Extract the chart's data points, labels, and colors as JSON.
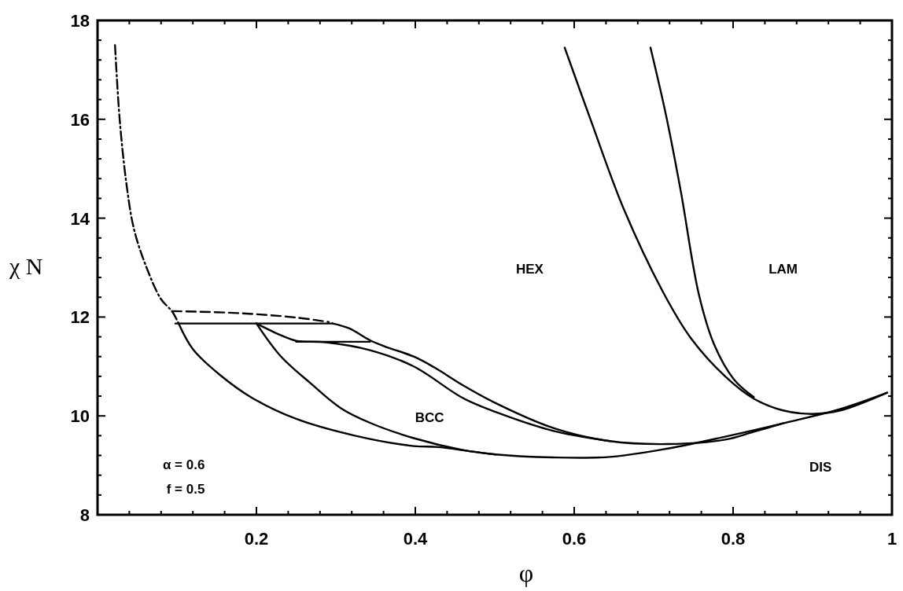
{
  "chart_data": {
    "type": "line",
    "xlabel": "φ",
    "ylabel": "χ N",
    "xlim": [
      0,
      1
    ],
    "ylim": [
      8,
      18
    ],
    "xticks": [
      {
        "value": 0.04,
        "label": null
      },
      {
        "value": 0.08,
        "label": null
      },
      {
        "value": 0.12,
        "label": null
      },
      {
        "value": 0.16,
        "label": null
      },
      0.2,
      {
        "value": 0.24,
        "label": null
      },
      {
        "value": 0.28,
        "label": null
      },
      {
        "value": 0.32,
        "label": null
      },
      {
        "value": 0.36,
        "label": null
      },
      0.4,
      {
        "value": 0.44,
        "label": null
      },
      {
        "value": 0.48,
        "label": null
      },
      {
        "value": 0.52,
        "label": null
      },
      {
        "value": 0.56,
        "label": null
      },
      0.6,
      {
        "value": 0.64,
        "label": null
      },
      {
        "value": 0.68,
        "label": null
      },
      {
        "value": 0.72,
        "label": null
      },
      {
        "value": 0.76,
        "label": null
      },
      0.8,
      {
        "value": 0.84,
        "label": null
      },
      {
        "value": 0.88,
        "label": null
      },
      {
        "value": 0.92,
        "label": null
      },
      {
        "value": 0.96,
        "label": null
      },
      1
    ],
    "yticks": [
      8,
      {
        "value": 8.4,
        "label": null
      },
      {
        "value": 8.8,
        "label": null
      },
      {
        "value": 9.2,
        "label": null
      },
      {
        "value": 9.6,
        "label": null
      },
      10,
      {
        "value": 10.4,
        "label": null
      },
      {
        "value": 10.8,
        "label": null
      },
      {
        "value": 11.2,
        "label": null
      },
      {
        "value": 11.6,
        "label": null
      },
      12,
      {
        "value": 12.4,
        "label": null
      },
      {
        "value": 12.8,
        "label": null
      },
      {
        "value": 13.2,
        "label": null
      },
      {
        "value": 13.6,
        "label": null
      },
      14,
      {
        "value": 14.4,
        "label": null
      },
      {
        "value": 14.8,
        "label": null
      },
      {
        "value": 15.2,
        "label": null
      },
      {
        "value": 15.6,
        "label": null
      },
      16,
      {
        "value": 16.4,
        "label": null
      },
      {
        "value": 16.8,
        "label": null
      },
      {
        "value": 17.2,
        "label": null
      },
      {
        "value": 17.6,
        "label": null
      },
      18
    ],
    "grid": false,
    "series": [
      {
        "color": "#000000",
        "line_style": "dashdot",
        "x": [
          0.022,
          0.028,
          0.037,
          0.046,
          0.061,
          0.08,
          0.094,
          0.102
        ],
        "values": [
          17.5,
          15.97,
          14.62,
          13.77,
          13.03,
          12.36,
          12.11,
          11.87
        ]
      },
      {
        "color": "#000000",
        "line_style": "solid",
        "x": [
          0.102,
          0.12,
          0.154,
          0.194,
          0.25,
          0.324,
          0.398,
          0.429,
          0.501,
          0.573,
          0.645,
          0.718,
          0.79,
          0.863,
          0.935,
          0.994
        ],
        "values": [
          11.87,
          11.35,
          10.83,
          10.37,
          9.94,
          9.6,
          9.39,
          9.37,
          9.22,
          9.16,
          9.17,
          9.34,
          9.58,
          9.85,
          10.14,
          10.47
        ]
      },
      {
        "color": "#000000",
        "line_style": "solid",
        "x": [
          0.2,
          0.231,
          0.269,
          0.306,
          0.343,
          0.398,
          0.46,
          0.501
        ],
        "values": [
          11.87,
          11.2,
          10.65,
          10.16,
          9.86,
          9.55,
          9.31,
          9.22
        ]
      },
      {
        "color": "#000000",
        "line_style": "solid",
        "x": [
          0.098,
          0.296
        ],
        "values": [
          11.87,
          11.87
        ]
      },
      {
        "color": "#000000",
        "line_style": "solid",
        "x": [
          0.296,
          0.317,
          0.343,
          0.361,
          0.398,
          0.424,
          0.46,
          0.501,
          0.573,
          0.645,
          0.718,
          0.79,
          0.826,
          0.863
        ],
        "values": [
          11.87,
          11.77,
          11.53,
          11.41,
          11.2,
          10.98,
          10.62,
          10.26,
          9.76,
          9.49,
          9.43,
          9.52,
          9.68,
          9.85
        ]
      },
      {
        "color": "#000000",
        "line_style": "solid",
        "x": [
          0.2,
          0.231,
          0.25,
          0.287,
          0.343,
          0.398,
          0.46,
          0.501,
          0.573,
          0.645
        ],
        "values": [
          11.87,
          11.63,
          11.52,
          11.49,
          11.33,
          11.0,
          10.36,
          10.08,
          9.7,
          9.49
        ]
      },
      {
        "color": "#000000",
        "line_style": "solid",
        "x": [
          0.25,
          0.343
        ],
        "values": [
          11.5,
          11.5
        ]
      },
      {
        "color": "#000000",
        "line_style": "dashed",
        "x": [
          0.094,
          0.176,
          0.25,
          0.291
        ],
        "values": [
          12.12,
          12.08,
          11.99,
          11.9
        ]
      },
      {
        "color": "#000000",
        "line_style": "solid",
        "x": [
          0.588,
          0.622,
          0.662,
          0.712,
          0.747,
          0.79,
          0.826,
          0.863,
          0.899,
          0.935,
          0.994
        ],
        "values": [
          17.45,
          15.93,
          14.2,
          12.5,
          11.57,
          10.8,
          10.35,
          10.11,
          10.04,
          10.11,
          10.47
        ]
      },
      {
        "color": "#000000",
        "line_style": "solid",
        "x": [
          0.696,
          0.716,
          0.734,
          0.757,
          0.776,
          0.801,
          0.826
        ],
        "values": [
          17.45,
          16.05,
          14.56,
          12.45,
          11.45,
          10.74,
          10.38
        ]
      }
    ],
    "annotations": [
      "HEX",
      "LAM",
      "BCC",
      "DIS",
      "α = 0.6",
      "f = 0.5"
    ]
  }
}
